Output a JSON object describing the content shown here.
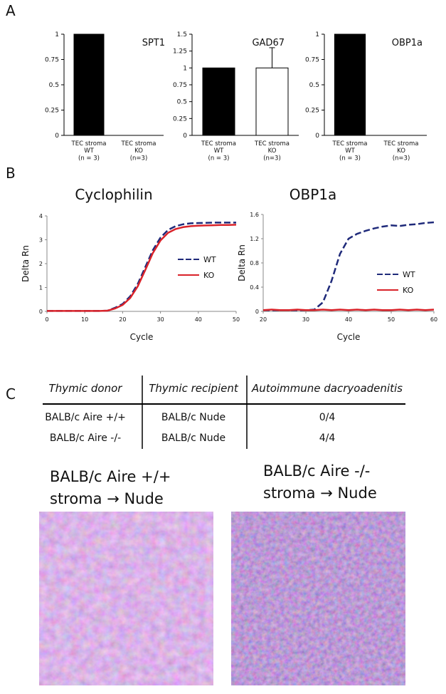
{
  "panel_labels": [
    "A",
    "B",
    "C"
  ],
  "chart_data": [
    {
      "type": "bar",
      "title": "SPT1",
      "categories": [
        "TEC stroma\nWT\n(n = 3)",
        "TEC stroma\nKO\n(n=3)"
      ],
      "values": [
        1,
        0
      ],
      "colors": [
        "#000000",
        "#ffffff"
      ],
      "ylim": [
        0,
        1
      ],
      "yticks": [
        0,
        0.25,
        0.5,
        0.75,
        1
      ]
    },
    {
      "type": "bar",
      "title": "GAD67",
      "categories": [
        "TEC stroma\nWT\n(n = 3)",
        "TEC stroma\nKO\n(n=3)"
      ],
      "values": [
        1,
        1
      ],
      "errors": [
        null,
        0.3
      ],
      "colors": [
        "#000000",
        "#ffffff"
      ],
      "ylim": [
        0,
        1.5
      ],
      "yticks": [
        0,
        0.25,
        0.5,
        0.75,
        1,
        1.25,
        1.5
      ]
    },
    {
      "type": "bar",
      "title": "OBP1a",
      "categories": [
        "TEC stroma\nWT\n(n = 3)",
        "TEC stroma\nKO\n(n=3)"
      ],
      "values": [
        1,
        0
      ],
      "colors": [
        "#000000",
        "#ffffff"
      ],
      "ylim": [
        0,
        1
      ],
      "yticks": [
        0,
        0.25,
        0.5,
        0.75,
        1
      ]
    },
    {
      "type": "line",
      "title": "Cyclophilin",
      "x_label": "Cycle",
      "y_label": "Delta Rn",
      "x": [
        0,
        2,
        4,
        6,
        8,
        10,
        12,
        14,
        16,
        18,
        20,
        22,
        24,
        26,
        28,
        30,
        32,
        34,
        36,
        38,
        40,
        42,
        44,
        46,
        48,
        50
      ],
      "series": [
        {
          "name": "WT",
          "color": "#1f2a7a",
          "dash": true,
          "values": [
            0.02,
            0.02,
            0.02,
            0.02,
            0.02,
            0.02,
            0.02,
            0.02,
            0.03,
            0.15,
            0.31,
            0.63,
            1.15,
            1.86,
            2.57,
            3.09,
            3.41,
            3.57,
            3.65,
            3.69,
            3.7,
            3.71,
            3.72,
            3.72,
            3.72,
            3.72
          ]
        },
        {
          "name": "KO",
          "color": "#d9232a",
          "dash": false,
          "values": [
            0.02,
            0.02,
            0.02,
            0.02,
            0.02,
            0.02,
            0.02,
            0.02,
            0.03,
            0.12,
            0.27,
            0.56,
            1.05,
            1.74,
            2.45,
            2.97,
            3.29,
            3.45,
            3.53,
            3.57,
            3.59,
            3.6,
            3.61,
            3.62,
            3.62,
            3.63
          ]
        }
      ],
      "xlim": [
        0,
        50
      ],
      "xticks": [
        0,
        10,
        20,
        30,
        40,
        50
      ],
      "ylim": [
        0,
        4
      ],
      "yticks": [
        0,
        1,
        2,
        3,
        4
      ]
    },
    {
      "type": "line",
      "title": "OBP1a",
      "x_label": "Cycle",
      "y_label": "Delta Rn",
      "x": [
        20,
        22,
        24,
        26,
        28,
        30,
        32,
        34,
        36,
        38,
        40,
        42,
        44,
        46,
        48,
        50,
        52,
        54,
        56,
        58,
        60
      ],
      "series": [
        {
          "name": "WT",
          "color": "#1f2a7a",
          "dash": true,
          "values": [
            0.02,
            0.02,
            0.02,
            0.02,
            0.02,
            0.02,
            0.03,
            0.15,
            0.5,
            0.95,
            1.2,
            1.28,
            1.33,
            1.37,
            1.4,
            1.42,
            1.41,
            1.43,
            1.44,
            1.46,
            1.47
          ]
        },
        {
          "name": "KO",
          "color": "#d9232a",
          "dash": false,
          "values": [
            0.02,
            0.03,
            0.02,
            0.02,
            0.03,
            0.02,
            0.02,
            0.03,
            0.02,
            0.03,
            0.02,
            0.03,
            0.02,
            0.03,
            0.02,
            0.02,
            0.03,
            0.02,
            0.03,
            0.02,
            0.03
          ]
        }
      ],
      "xlim": [
        20,
        60
      ],
      "xticks": [
        20,
        30,
        40,
        50,
        60
      ],
      "ylim": [
        0,
        1.6
      ],
      "yticks": [
        0,
        0.4,
        0.8,
        1.2,
        1.6
      ]
    }
  ],
  "table": {
    "header": [
      "Thymic donor",
      "Thymic recipient",
      "Autoimmune dacryoadenitis"
    ],
    "rows": [
      [
        "BALB/c Aire +/+",
        "BALB/c Nude",
        "0/4"
      ],
      [
        "BALB/c Aire -/-",
        "BALB/c Nude",
        "4/4"
      ]
    ]
  },
  "images": [
    {
      "caption": [
        "BALB/c Aire +/+",
        "stroma → Nude"
      ]
    },
    {
      "caption": [
        "BALB/c Aire -/-",
        "stroma → Nude"
      ]
    }
  ]
}
